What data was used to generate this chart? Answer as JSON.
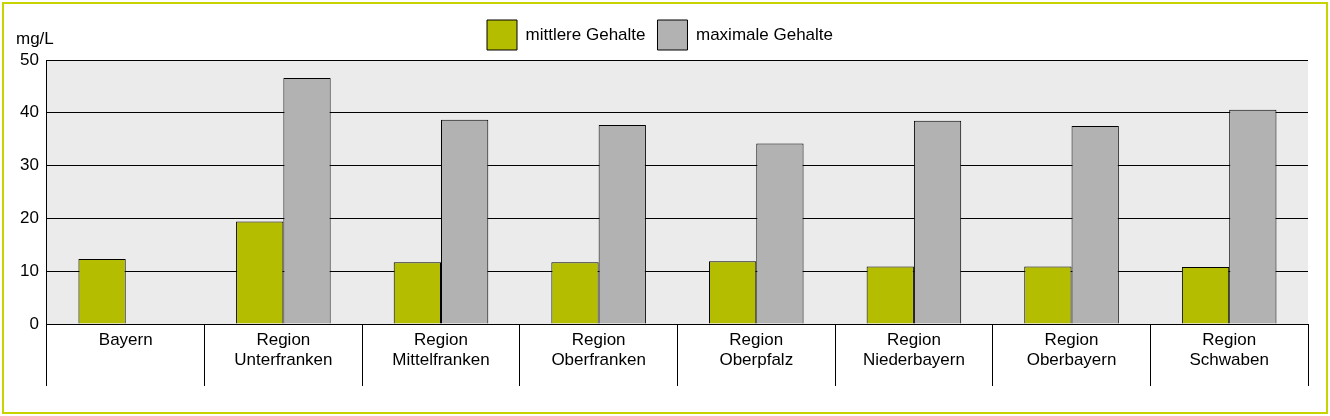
{
  "chart_data": {
    "type": "bar",
    "ylabel": "mg/L",
    "categories": [
      "Bayern",
      "Region\nUnterfranken",
      "Region\nMittelfranken",
      "Region\nOberfranken",
      "Region\nOberpfalz",
      "Region\nNiederbayern",
      "Region\nOberbayern",
      "Region\nSchwaben"
    ],
    "series": [
      {
        "name": "mittlere Gehalte",
        "color": "#b5bd00",
        "values": [
          12.3,
          19.4,
          11.7,
          11.7,
          11.9,
          10.9,
          10.9,
          10.8
        ]
      },
      {
        "name": "maximale Gehalte",
        "color": "#b2b2b2",
        "values": [
          null,
          46.6,
          38.7,
          37.7,
          34.2,
          38.5,
          37.5,
          40.6
        ]
      }
    ],
    "ylim": [
      0,
      50
    ],
    "yticks": [
      0,
      10,
      20,
      30,
      40,
      50
    ],
    "grid": "y",
    "legend": "top"
  }
}
